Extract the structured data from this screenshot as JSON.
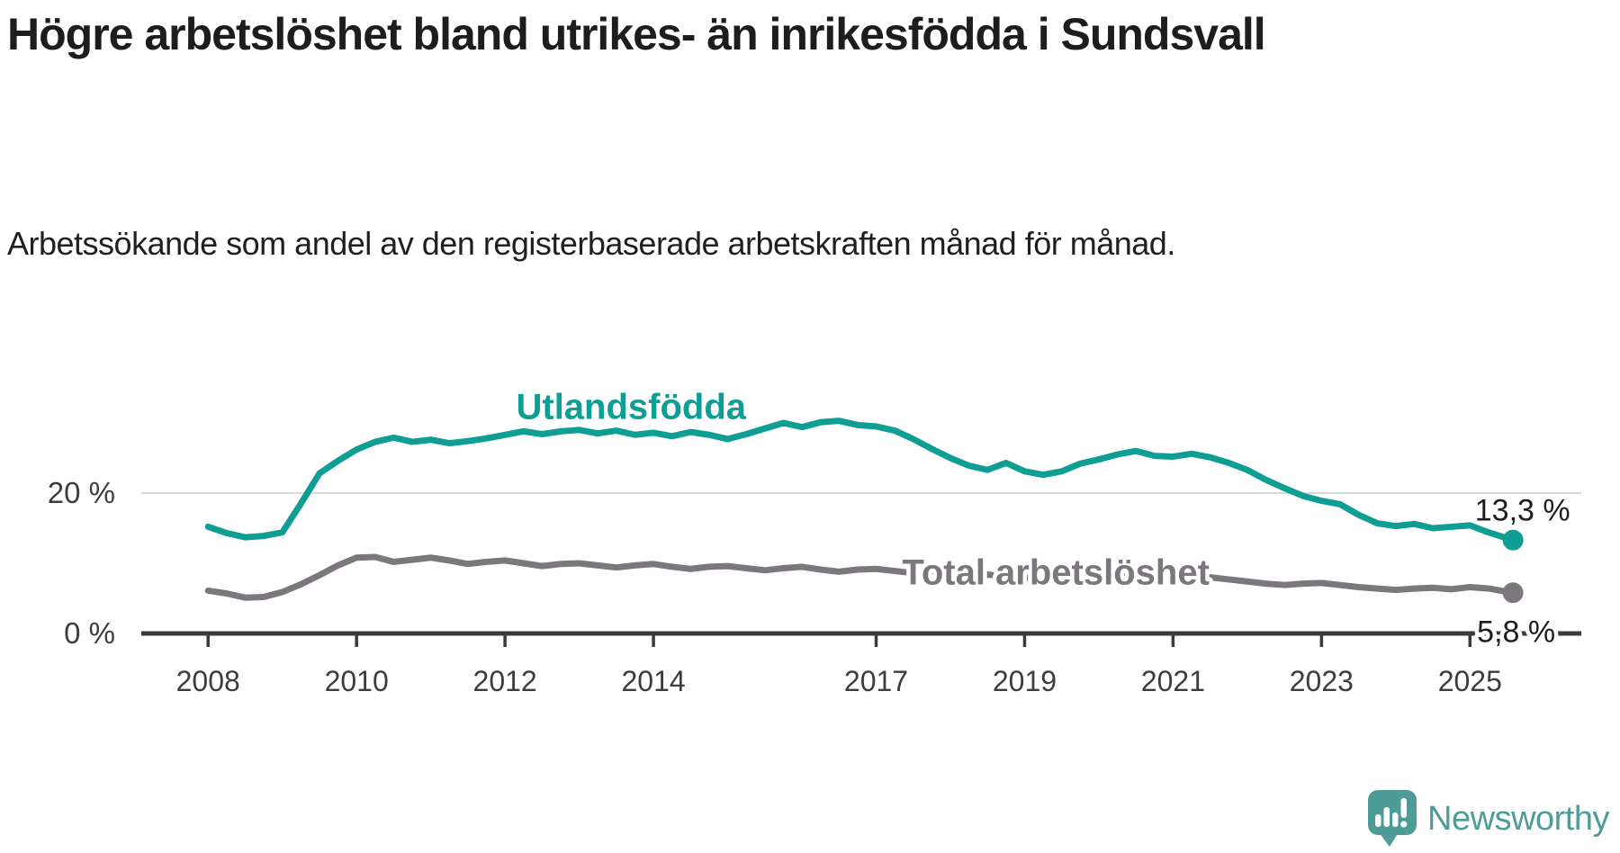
{
  "chart_data": {
    "type": "line",
    "title": "Högre arbetslöshet bland utrikes- än inrikesfödda i Sundsvall",
    "subtitle": "Arbetssökande som andel av den registerbaserade arbetskraften månad för månad.",
    "unit": "%",
    "x_unit": "year",
    "xlim": [
      2007.1,
      2026.5
    ],
    "ylim": [
      0,
      42
    ],
    "grid": "single horizontal gridline at 20 %",
    "legend_position": "inline-labels-on-lines",
    "text_color": "#1d1d1d",
    "axis_color": "#3b3b3b",
    "tick_label_color": "#3d3d3d",
    "gridline_color": "#d9d9d9",
    "x": [
      2008,
      2008.25,
      2008.5,
      2008.75,
      2009,
      2009.25,
      2009.5,
      2009.75,
      2010,
      2010.25,
      2010.5,
      2010.75,
      2011,
      2011.25,
      2011.5,
      2011.75,
      2012,
      2012.25,
      2012.5,
      2012.75,
      2013,
      2013.25,
      2013.5,
      2013.75,
      2014,
      2014.25,
      2014.5,
      2014.75,
      2015,
      2015.25,
      2015.5,
      2015.75,
      2016,
      2016.25,
      2016.5,
      2016.75,
      2017,
      2017.25,
      2017.5,
      2017.75,
      2018,
      2018.25,
      2018.5,
      2018.75,
      2019,
      2019.25,
      2019.5,
      2019.75,
      2020,
      2020.25,
      2020.5,
      2020.75,
      2021,
      2021.25,
      2021.5,
      2021.75,
      2022,
      2022.25,
      2022.5,
      2022.75,
      2023,
      2023.25,
      2023.5,
      2023.75,
      2024,
      2024.25,
      2024.5,
      2024.75,
      2025,
      2025.25,
      2025.58
    ],
    "series": [
      {
        "id": "utlandsfodda",
        "name": "Utlandsfödda",
        "color": "#0E9E93",
        "end_value_label": "13,3 %",
        "values": [
          15.2,
          14.3,
          13.7,
          13.9,
          14.4,
          18.5,
          22.8,
          24.6,
          26.2,
          27.3,
          27.9,
          27.3,
          27.6,
          27.1,
          27.4,
          27.8,
          28.3,
          28.8,
          28.4,
          28.8,
          29.0,
          28.5,
          28.9,
          28.3,
          28.6,
          28.1,
          28.7,
          28.3,
          27.7,
          28.4,
          29.2,
          30.0,
          29.4,
          30.1,
          30.3,
          29.7,
          29.5,
          28.9,
          27.7,
          26.3,
          25.0,
          23.9,
          23.3,
          24.3,
          23.1,
          22.6,
          23.1,
          24.2,
          24.8,
          25.5,
          26.0,
          25.3,
          25.2,
          25.6,
          25.1,
          24.3,
          23.3,
          21.9,
          20.7,
          19.6,
          18.9,
          18.4,
          16.9,
          15.7,
          15.3,
          15.6,
          15.0,
          15.2,
          15.4,
          14.4,
          13.3
        ]
      },
      {
        "id": "total",
        "name": "Total arbetslöshet",
        "color": "#7B777D",
        "end_value_label": "5,8 %",
        "values": [
          6.1,
          5.7,
          5.1,
          5.2,
          5.9,
          7.0,
          8.3,
          9.7,
          10.8,
          10.9,
          10.2,
          10.5,
          10.8,
          10.4,
          9.9,
          10.2,
          10.4,
          10.0,
          9.6,
          9.9,
          10.0,
          9.7,
          9.4,
          9.7,
          9.9,
          9.5,
          9.2,
          9.5,
          9.6,
          9.3,
          9.0,
          9.3,
          9.5,
          9.1,
          8.8,
          9.1,
          9.2,
          8.9,
          8.6,
          8.8,
          8.5,
          8.2,
          8.4,
          8.1,
          7.9,
          8.1,
          8.3,
          8.0,
          8.2,
          8.6,
          8.8,
          8.5,
          8.2,
          8.4,
          8.0,
          7.7,
          7.4,
          7.1,
          6.9,
          7.1,
          7.2,
          6.9,
          6.6,
          6.4,
          6.2,
          6.4,
          6.5,
          6.3,
          6.6,
          6.4,
          5.8
        ]
      }
    ],
    "yticks": [
      {
        "value": 0,
        "label": "0 %",
        "gridline": false
      },
      {
        "value": 20,
        "label": "20 %",
        "gridline": true
      }
    ],
    "xticks": [
      {
        "value": 2008,
        "label": "2008"
      },
      {
        "value": 2010,
        "label": "2010"
      },
      {
        "value": 2012,
        "label": "2012"
      },
      {
        "value": 2014,
        "label": "2014"
      },
      {
        "value": 2017,
        "label": "2017"
      },
      {
        "value": 2019,
        "label": "2019"
      },
      {
        "value": 2021,
        "label": "2021"
      },
      {
        "value": 2023,
        "label": "2023"
      },
      {
        "value": 2025,
        "label": "2025"
      }
    ],
    "annotations": [
      {
        "id": "series-label-utlandsfodda",
        "text": "Utlandsfödda",
        "x": 2012.15,
        "y": 30.6,
        "anchor": "start",
        "color": "#0E9E93",
        "bold": true,
        "size": 40
      },
      {
        "id": "series-label-total",
        "text": "Total arbetslöshet",
        "x": 2017.35,
        "y": 7.0,
        "anchor": "start",
        "color": "#7B777D",
        "bold": true,
        "size": 40
      },
      {
        "id": "value-label-utlandsfodda",
        "text": "13,3 %",
        "x": 2026.35,
        "y": 16.1,
        "anchor": "end",
        "color": "#1d1d1d",
        "bold": false,
        "size": 34
      },
      {
        "id": "value-label-total",
        "text": "5,8 %",
        "x": 2026.15,
        "y": -1.2,
        "anchor": "end",
        "color": "#1d1d1d",
        "bold": false,
        "size": 34
      }
    ]
  },
  "branding": {
    "logo_text": "Newsworthy",
    "logo_color": "#4E9C98"
  }
}
